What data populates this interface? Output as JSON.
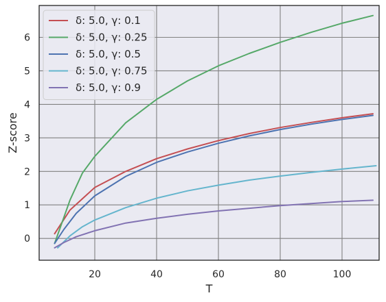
{
  "chart_data": {
    "type": "line",
    "title": "",
    "xlabel": "T",
    "ylabel": "Z-score",
    "xlim": [
      2,
      112
    ],
    "ylim": [
      -0.65,
      6.95
    ],
    "xticks": [
      20,
      40,
      60,
      80,
      100
    ],
    "yticks": [
      0,
      1,
      2,
      3,
      4,
      5,
      6
    ],
    "grid": true,
    "legend_position": "top-left",
    "series": [
      {
        "name": "δ: 5.0, γ: 0.1",
        "color": "#c44e52",
        "x": [
          7,
          12,
          20,
          30,
          40,
          50,
          60,
          70,
          80,
          90,
          100,
          110
        ],
        "y": [
          0.14,
          0.85,
          1.52,
          2.0,
          2.38,
          2.67,
          2.92,
          3.13,
          3.31,
          3.46,
          3.6,
          3.72
        ]
      },
      {
        "name": "δ: 5.0, γ: 0.25",
        "color": "#55a868",
        "x": [
          7,
          12,
          16,
          20,
          30,
          40,
          50,
          60,
          70,
          80,
          90,
          100,
          110
        ],
        "y": [
          -0.15,
          1.15,
          1.95,
          2.45,
          3.45,
          4.15,
          4.7,
          5.15,
          5.52,
          5.85,
          6.15,
          6.42,
          6.65
        ]
      },
      {
        "name": "δ: 5.0, γ: 0.5",
        "color": "#4c72b0",
        "x": [
          7,
          10,
          14,
          20,
          30,
          40,
          50,
          60,
          70,
          80,
          90,
          100,
          110
        ],
        "y": [
          -0.15,
          0.27,
          0.75,
          1.27,
          1.85,
          2.27,
          2.58,
          2.84,
          3.06,
          3.25,
          3.41,
          3.55,
          3.67
        ]
      },
      {
        "name": "δ: 5.0, γ: 0.75",
        "color": "#64b5cd",
        "x": [
          8,
          12,
          16,
          20,
          30,
          40,
          50,
          60,
          70,
          80,
          90,
          100,
          111
        ],
        "y": [
          -0.28,
          0.08,
          0.35,
          0.55,
          0.92,
          1.2,
          1.42,
          1.59,
          1.74,
          1.86,
          1.97,
          2.07,
          2.17
        ]
      },
      {
        "name": "δ: 5.0, γ: 0.9",
        "color": "#8172b2",
        "x": [
          7,
          10,
          14,
          20,
          30,
          40,
          50,
          60,
          70,
          80,
          90,
          100,
          110
        ],
        "y": [
          -0.28,
          -0.12,
          0.05,
          0.23,
          0.46,
          0.6,
          0.72,
          0.82,
          0.9,
          0.98,
          1.04,
          1.1,
          1.14
        ]
      }
    ]
  }
}
